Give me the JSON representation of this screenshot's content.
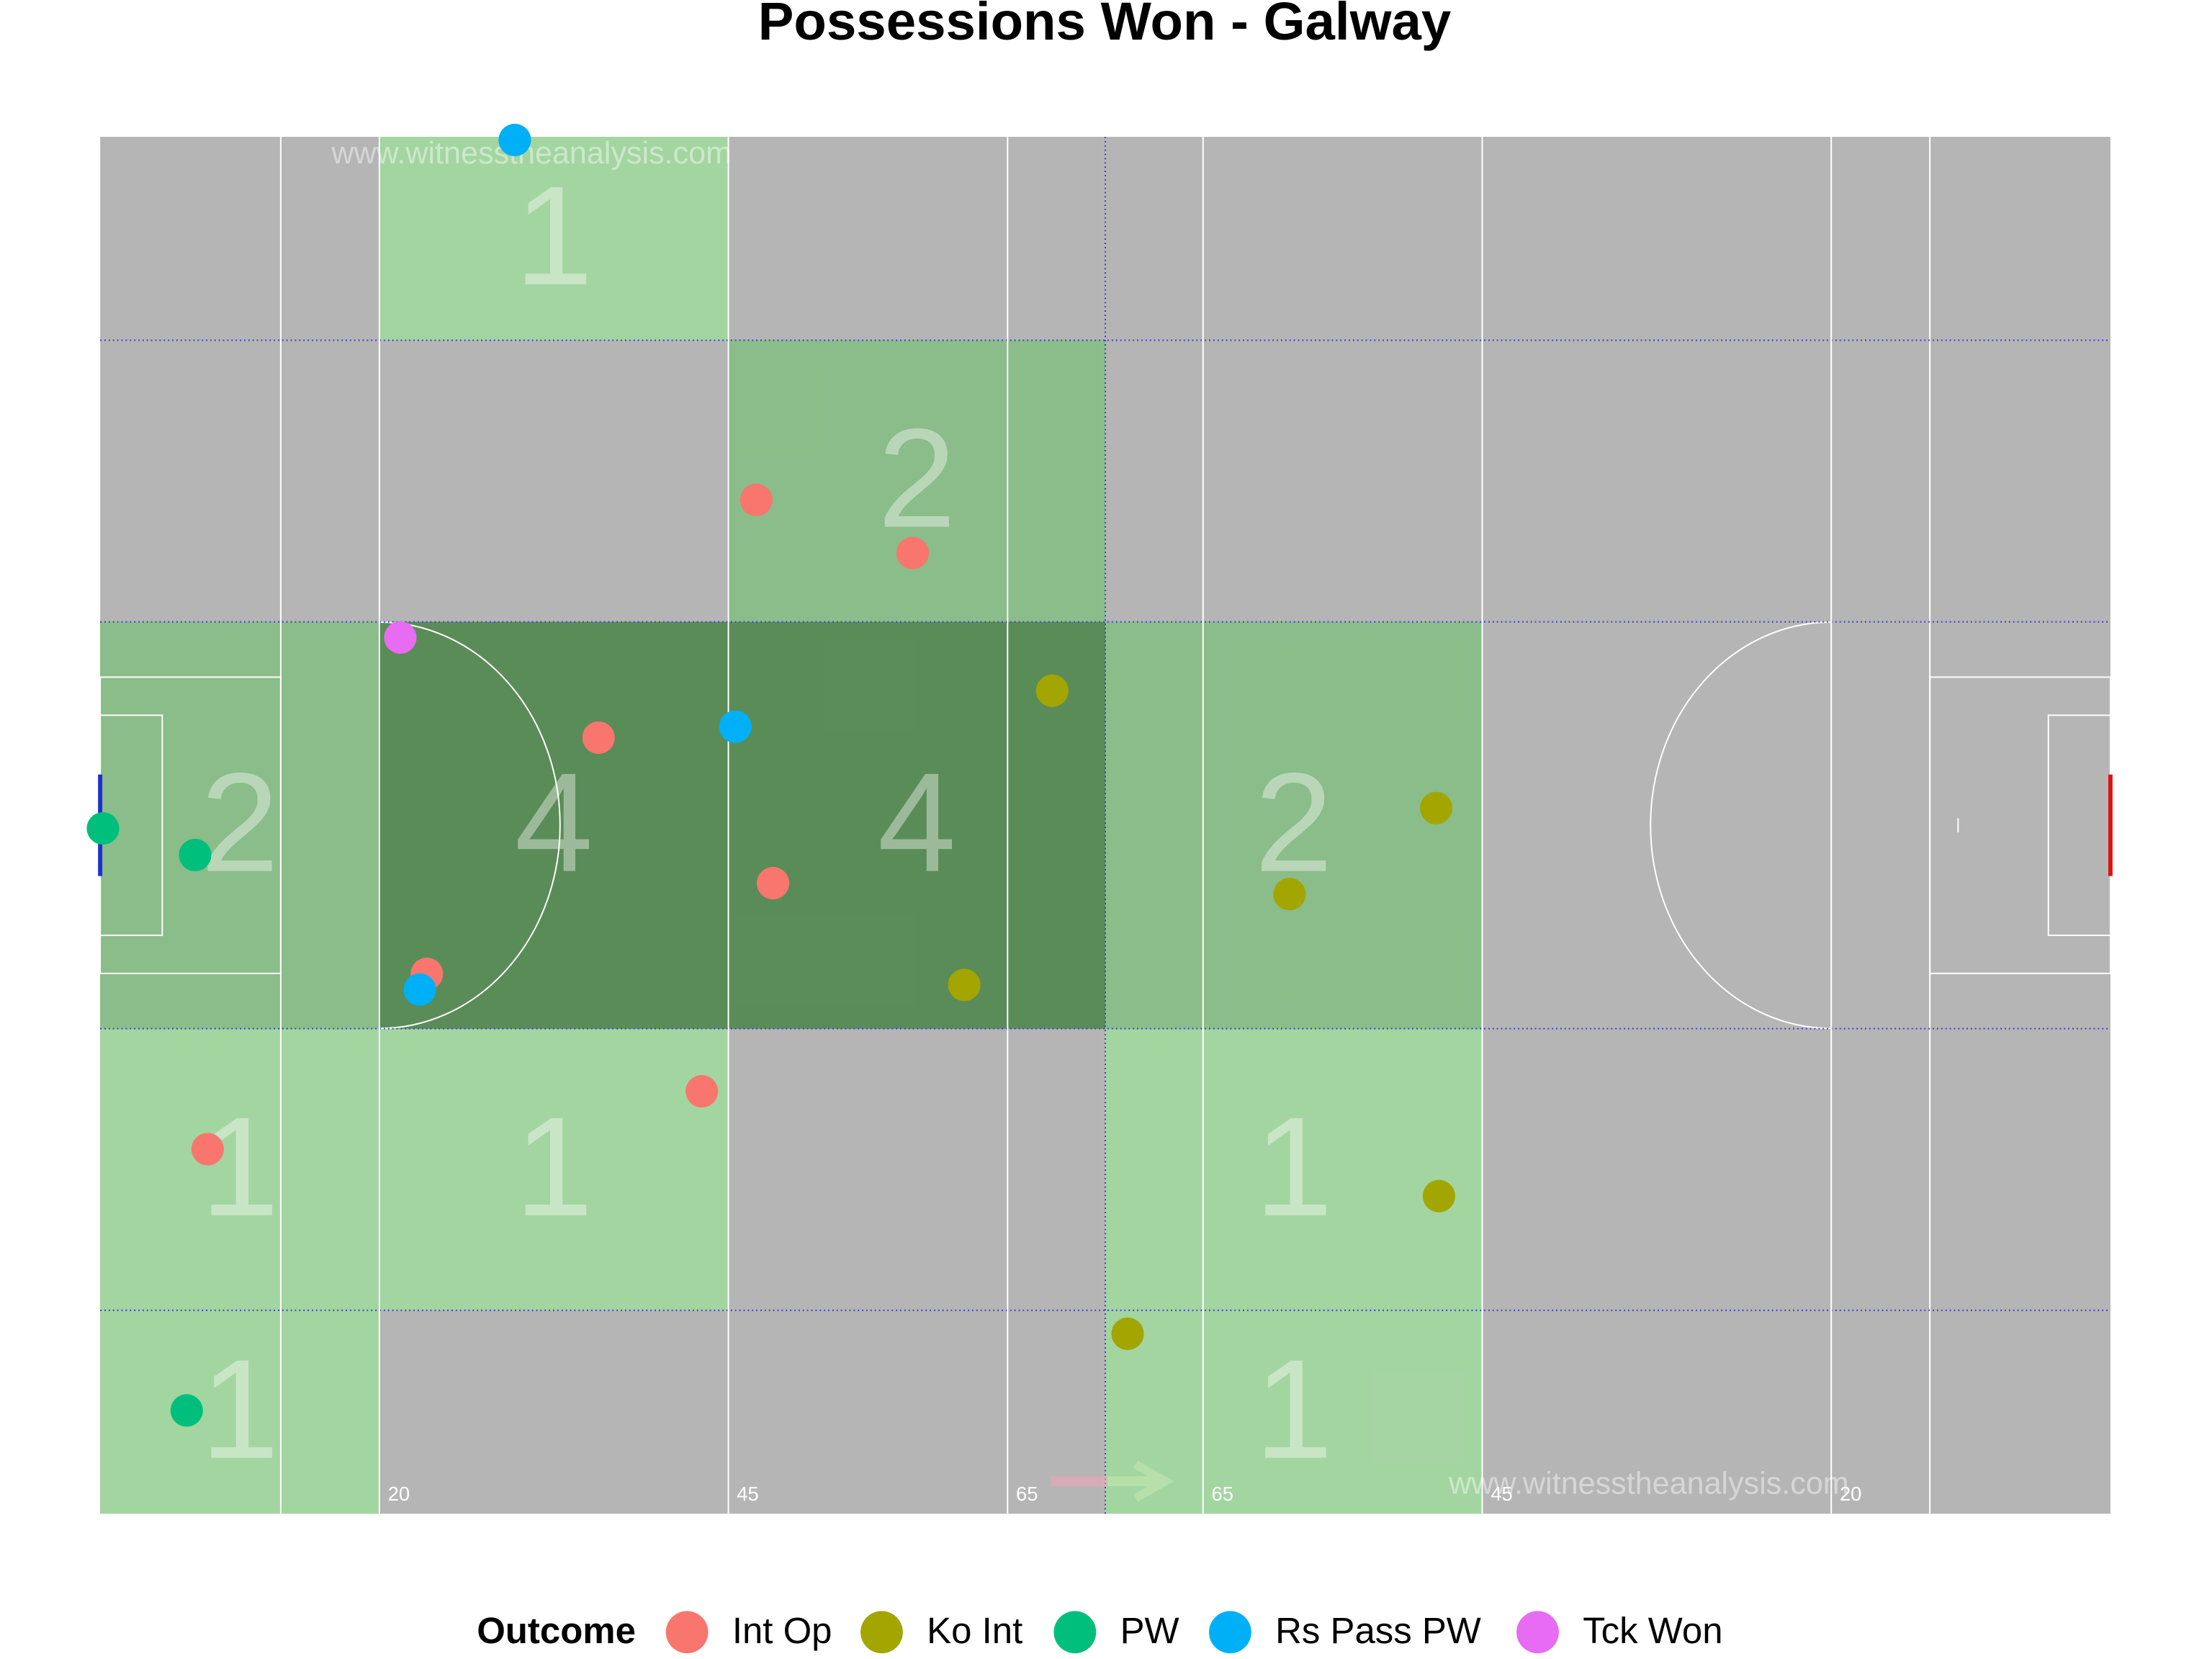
{
  "chart_data": {
    "type": "scatter",
    "title": "Possessions Won - Galway",
    "watermark": "www.witnesstheanalysis.com",
    "legend_title": "Outcome",
    "legend_position": "bottom",
    "xlim": [
      0,
      144
    ],
    "ylim": [
      0,
      88
    ],
    "xticks": [
      20,
      45,
      65,
      {
        "value": 79,
        "label": "65"
      },
      {
        "value": 99,
        "label": "45"
      },
      {
        "value": 124,
        "label": "20"
      }
    ],
    "zones": {
      "xbreaks": [
        0,
        20,
        45,
        72,
        99,
        144
      ],
      "ybreaks": [
        0,
        13,
        31,
        57,
        75,
        88
      ],
      "counts": [
        [
          1,
          null,
          null,
          1,
          null
        ],
        [
          1,
          1,
          null,
          1,
          null
        ],
        [
          2,
          4,
          4,
          2,
          null
        ],
        [
          null,
          null,
          2,
          null,
          null
        ],
        [
          null,
          1,
          null,
          null,
          null
        ]
      ],
      "low_color": "#a2d8a0",
      "high_color": "#52894f"
    },
    "series": [
      {
        "name": "Int Op",
        "color": "#F8766D",
        "x": [
          47.0,
          58.2,
          35.7,
          48.2,
          23.4,
          43.1,
          7.7
        ],
        "y": [
          64.8,
          61.4,
          49.6,
          40.3,
          34.5,
          27.0,
          23.3
        ]
      },
      {
        "name": "Ko Int",
        "color": "#A3A500",
        "x": [
          68.2,
          95.7,
          85.2,
          61.9,
          95.9,
          73.6
        ],
        "y": [
          52.6,
          45.1,
          39.6,
          33.8,
          20.3,
          11.5
        ]
      },
      {
        "name": "PW",
        "color": "#00BF7D",
        "x": [
          0.2,
          6.8,
          6.2
        ],
        "y": [
          43.8,
          42.1,
          6.6
        ]
      },
      {
        "name": "Rs Pass PW",
        "color": "#00B0F6",
        "x": [
          29.7,
          45.5,
          22.9
        ],
        "y": [
          87.8,
          50.3,
          33.5
        ]
      },
      {
        "name": "Tck Won",
        "color": "#E76BF3",
        "x": [
          21.5
        ],
        "y": [
          56.0
        ]
      }
    ]
  }
}
